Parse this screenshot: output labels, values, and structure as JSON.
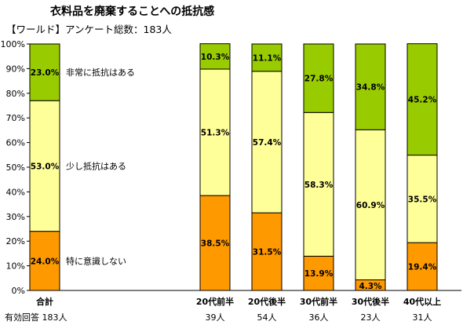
{
  "title": "衣料品を廃棄することへの抵抗感",
  "subtitle": "【ワールド】アンケート総数：183人",
  "chart_data": {
    "type": "bar",
    "stacked": true,
    "percent": true,
    "ylim": [
      0,
      100
    ],
    "yticks": [
      "0%",
      "10%",
      "20%",
      "30%",
      "40%",
      "50%",
      "60%",
      "70%",
      "80%",
      "90%",
      "100%"
    ],
    "categories": [
      "合計",
      "20代前半",
      "20代後半",
      "30代前半",
      "30代後半",
      "40代以上"
    ],
    "counts": [
      "有効回答 183人",
      "39人",
      "54人",
      "36人",
      "23人",
      "31人"
    ],
    "series": [
      {
        "name": "特に意識しない",
        "color": "#ff9900",
        "values": [
          24.0,
          38.5,
          31.5,
          13.9,
          4.3,
          19.4
        ],
        "labels": [
          "24.0%",
          "38.5%",
          "31.5%",
          "13.9%",
          "4.3%",
          "19.4%"
        ]
      },
      {
        "name": "少し抵抗はある",
        "color": "#ffff99",
        "values": [
          53.0,
          51.3,
          57.4,
          58.3,
          60.9,
          35.5
        ],
        "labels": [
          "53.0%",
          "51.3%",
          "57.4%",
          "58.3%",
          "60.9%",
          "35.5%"
        ]
      },
      {
        "name": "非常に抵抗はある",
        "color": "#99cc00",
        "values": [
          23.0,
          10.3,
          11.1,
          27.8,
          34.8,
          45.2
        ],
        "labels": [
          "23.0%",
          "10.3%",
          "11.1%",
          "27.8%",
          "34.8%",
          "45.2%"
        ]
      }
    ],
    "legend": "labels beside first bar"
  }
}
